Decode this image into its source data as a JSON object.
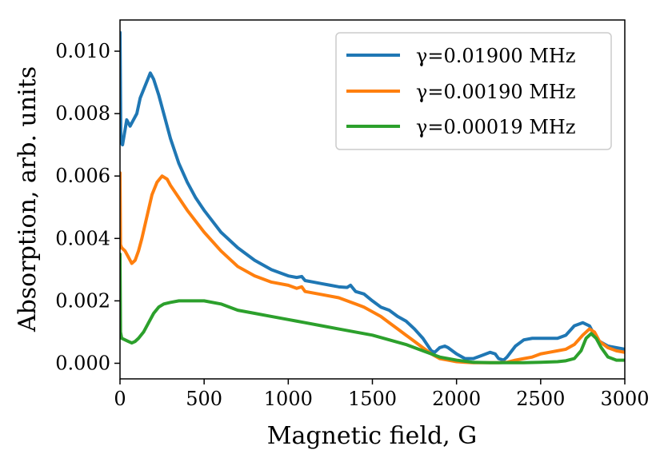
{
  "chart_data": {
    "type": "line",
    "title": "",
    "xlabel": "Magnetic field, G",
    "ylabel": "Absorption, arb. units",
    "xlim": [
      0,
      3000
    ],
    "ylim": [
      -0.0005,
      0.011
    ],
    "xticks": [
      0,
      500,
      1000,
      1500,
      2000,
      2500,
      3000
    ],
    "xtick_labels": [
      "0",
      "500",
      "1000",
      "1500",
      "2000",
      "2500",
      "3000"
    ],
    "yticks": [
      0.0,
      0.002,
      0.004,
      0.006,
      0.008,
      0.01
    ],
    "ytick_labels": [
      "0.000",
      "0.002",
      "0.004",
      "0.006",
      "0.008",
      "0.010"
    ],
    "grid": false,
    "legend_position": "top-right",
    "series": [
      {
        "name": "γ=0.01900 MHz",
        "color": "#1f77b4",
        "x": [
          0,
          5,
          15,
          40,
          60,
          80,
          100,
          120,
          150,
          180,
          200,
          230,
          260,
          300,
          350,
          400,
          450,
          500,
          600,
          700,
          800,
          900,
          1000,
          1050,
          1080,
          1100,
          1150,
          1200,
          1250,
          1300,
          1350,
          1370,
          1400,
          1450,
          1500,
          1550,
          1600,
          1650,
          1700,
          1750,
          1800,
          1850,
          1870,
          1900,
          1930,
          1950,
          2000,
          2050,
          2100,
          2150,
          2200,
          2230,
          2250,
          2280,
          2300,
          2350,
          2400,
          2450,
          2500,
          2550,
          2600,
          2650,
          2700,
          2750,
          2790,
          2820,
          2850,
          2900,
          2950,
          3000
        ],
        "values": [
          0.0106,
          0.0071,
          0.007,
          0.0078,
          0.0076,
          0.0078,
          0.008,
          0.0085,
          0.0089,
          0.0093,
          0.0091,
          0.0086,
          0.008,
          0.0072,
          0.0064,
          0.0058,
          0.0053,
          0.0049,
          0.0042,
          0.0037,
          0.0033,
          0.003,
          0.0028,
          0.00275,
          0.00278,
          0.00265,
          0.0026,
          0.00255,
          0.0025,
          0.00245,
          0.00243,
          0.0025,
          0.0023,
          0.00222,
          0.002,
          0.0018,
          0.0017,
          0.0015,
          0.00135,
          0.0011,
          0.0008,
          0.0004,
          0.00035,
          0.0005,
          0.00055,
          0.0005,
          0.0003,
          0.00015,
          0.00015,
          0.00025,
          0.00035,
          0.0003,
          0.00015,
          0.0001,
          0.0002,
          0.00055,
          0.00075,
          0.0008,
          0.0008,
          0.0008,
          0.0008,
          0.0009,
          0.0012,
          0.0013,
          0.0012,
          0.0009,
          0.0007,
          0.00055,
          0.0005,
          0.00045
        ]
      },
      {
        "name": "γ=0.00190 MHz",
        "color": "#ff7f0e",
        "x": [
          0,
          3,
          10,
          30,
          50,
          70,
          90,
          110,
          130,
          160,
          190,
          220,
          250,
          280,
          300,
          350,
          400,
          500,
          600,
          700,
          800,
          900,
          1000,
          1050,
          1080,
          1100,
          1200,
          1300,
          1350,
          1400,
          1450,
          1500,
          1550,
          1600,
          1650,
          1700,
          1750,
          1800,
          1850,
          1900,
          1950,
          2000,
          2050,
          2100,
          2150,
          2200,
          2250,
          2300,
          2350,
          2400,
          2450,
          2500,
          2550,
          2600,
          2650,
          2700,
          2750,
          2790,
          2820,
          2850,
          2900,
          2950,
          3000
        ],
        "values": [
          0.0061,
          0.0038,
          0.0037,
          0.0036,
          0.0034,
          0.0032,
          0.0033,
          0.0036,
          0.004,
          0.0047,
          0.0054,
          0.0058,
          0.006,
          0.0059,
          0.0057,
          0.0053,
          0.0049,
          0.0042,
          0.0036,
          0.0031,
          0.0028,
          0.0026,
          0.0025,
          0.0024,
          0.00245,
          0.0023,
          0.0022,
          0.0021,
          0.002,
          0.0019,
          0.0018,
          0.00165,
          0.0015,
          0.0013,
          0.0011,
          0.0009,
          0.0007,
          0.0005,
          0.0003,
          0.00015,
          0.0001,
          5e-05,
          3e-05,
          2e-05,
          2e-05,
          2e-05,
          2e-05,
          3e-05,
          0.0001,
          0.00015,
          0.0002,
          0.0003,
          0.00035,
          0.0004,
          0.00045,
          0.0006,
          0.0009,
          0.0011,
          0.001,
          0.0007,
          0.0005,
          0.0004,
          0.00035
        ]
      },
      {
        "name": "γ=0.00019 MHz",
        "color": "#2ca02c",
        "x": [
          0,
          3,
          10,
          30,
          50,
          70,
          90,
          110,
          140,
          170,
          200,
          230,
          260,
          300,
          350,
          400,
          450,
          500,
          600,
          700,
          800,
          900,
          1000,
          1050,
          1100,
          1200,
          1300,
          1400,
          1500,
          1600,
          1700,
          1800,
          1900,
          2000,
          2100,
          2200,
          2300,
          2400,
          2500,
          2600,
          2650,
          2700,
          2740,
          2770,
          2800,
          2830,
          2860,
          2900,
          2950,
          3000
        ],
        "values": [
          0.0035,
          0.001,
          0.0008,
          0.00075,
          0.0007,
          0.00065,
          0.0007,
          0.0008,
          0.001,
          0.0013,
          0.0016,
          0.0018,
          0.0019,
          0.00195,
          0.002,
          0.002,
          0.002,
          0.002,
          0.0019,
          0.0017,
          0.0016,
          0.0015,
          0.0014,
          0.00135,
          0.0013,
          0.0012,
          0.0011,
          0.001,
          0.0009,
          0.00075,
          0.0006,
          0.0004,
          0.0002,
          0.0001,
          3e-05,
          2e-05,
          2e-05,
          2e-05,
          3e-05,
          5e-05,
          8e-05,
          0.00015,
          0.0004,
          0.0008,
          0.00095,
          0.0008,
          0.0005,
          0.0002,
          0.0001,
          0.0001
        ]
      }
    ]
  }
}
